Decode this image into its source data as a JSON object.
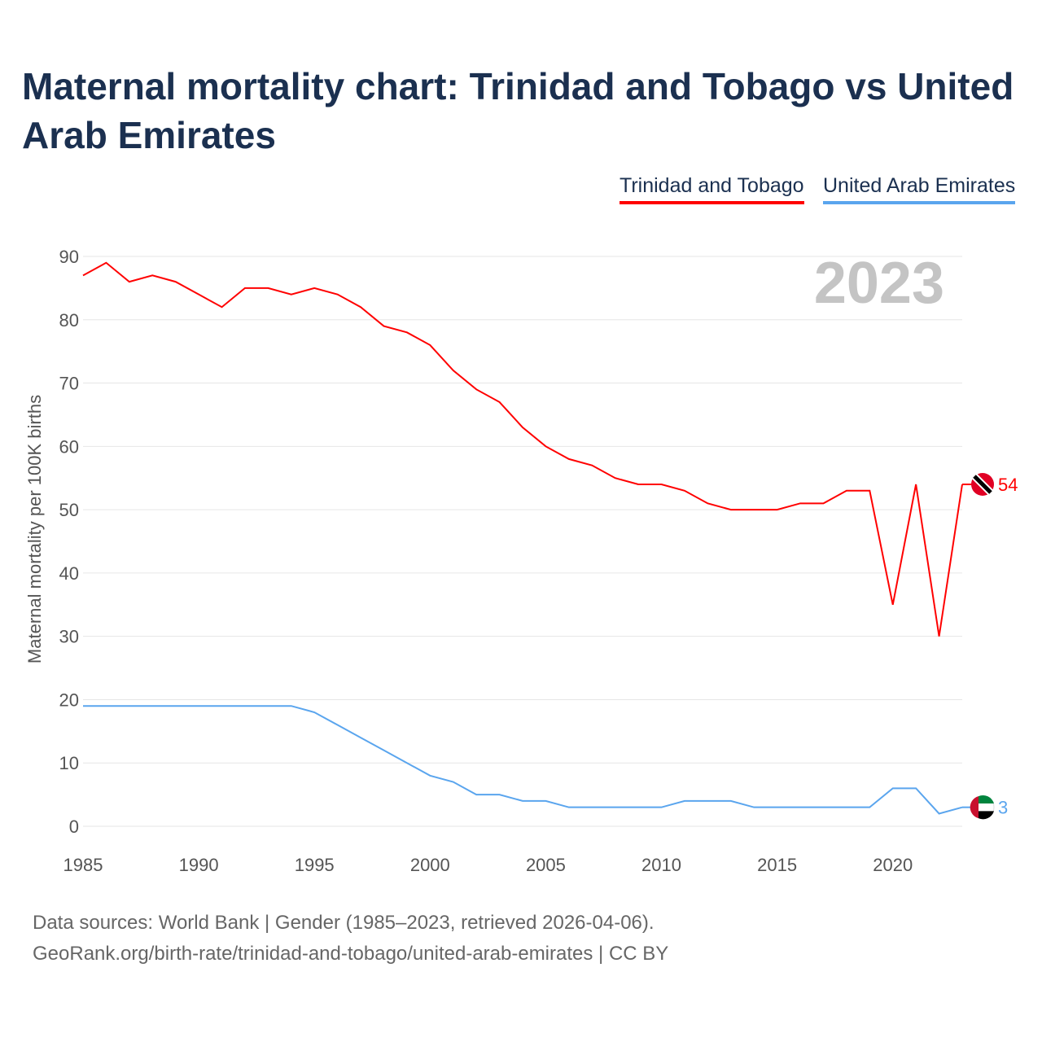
{
  "chart_data": {
    "type": "line",
    "title": "Maternal mortality chart: Trinidad and Tobago vs United Arab Emirates",
    "ylabel": "Maternal mortality per 100K births",
    "xlabel": "",
    "year_label": "2023",
    "xlim": [
      1985,
      2023
    ],
    "ylim": [
      0,
      90
    ],
    "yticks": [
      0,
      10,
      20,
      30,
      40,
      50,
      60,
      70,
      80,
      90
    ],
    "xticks": [
      1985,
      1990,
      1995,
      2000,
      2005,
      2010,
      2015,
      2020
    ],
    "grid": true,
    "legend_position": "top-right",
    "x": [
      1985,
      1986,
      1987,
      1988,
      1989,
      1990,
      1991,
      1992,
      1993,
      1994,
      1995,
      1996,
      1997,
      1998,
      1999,
      2000,
      2001,
      2002,
      2003,
      2004,
      2005,
      2006,
      2007,
      2008,
      2009,
      2010,
      2011,
      2012,
      2013,
      2014,
      2015,
      2016,
      2017,
      2018,
      2019,
      2020,
      2021,
      2022,
      2023
    ],
    "series": [
      {
        "name": "Trinidad and Tobago",
        "color": "#ff0000",
        "end_label": "54",
        "values": [
          87,
          89,
          86,
          87,
          86,
          84,
          82,
          85,
          85,
          84,
          85,
          84,
          82,
          79,
          78,
          76,
          72,
          69,
          67,
          63,
          60,
          58,
          57,
          55,
          54,
          54,
          53,
          51,
          50,
          50,
          50,
          51,
          51,
          53,
          53,
          35,
          54,
          30,
          54
        ]
      },
      {
        "name": "United Arab Emirates",
        "color": "#5aa5ee",
        "end_label": "3",
        "values": [
          19,
          19,
          19,
          19,
          19,
          19,
          19,
          19,
          19,
          19,
          18,
          16,
          14,
          12,
          10,
          8,
          7,
          5,
          5,
          4,
          4,
          3,
          3,
          3,
          3,
          3,
          4,
          4,
          4,
          3,
          3,
          3,
          3,
          3,
          3,
          6,
          6,
          2,
          3
        ]
      }
    ]
  },
  "footer": {
    "line1": "Data sources: World Bank | Gender (1985–2023, retrieved 2026-04-06).",
    "line2": "GeoRank.org/birth-rate/trinidad-and-tobago/united-arab-emirates | CC BY"
  }
}
